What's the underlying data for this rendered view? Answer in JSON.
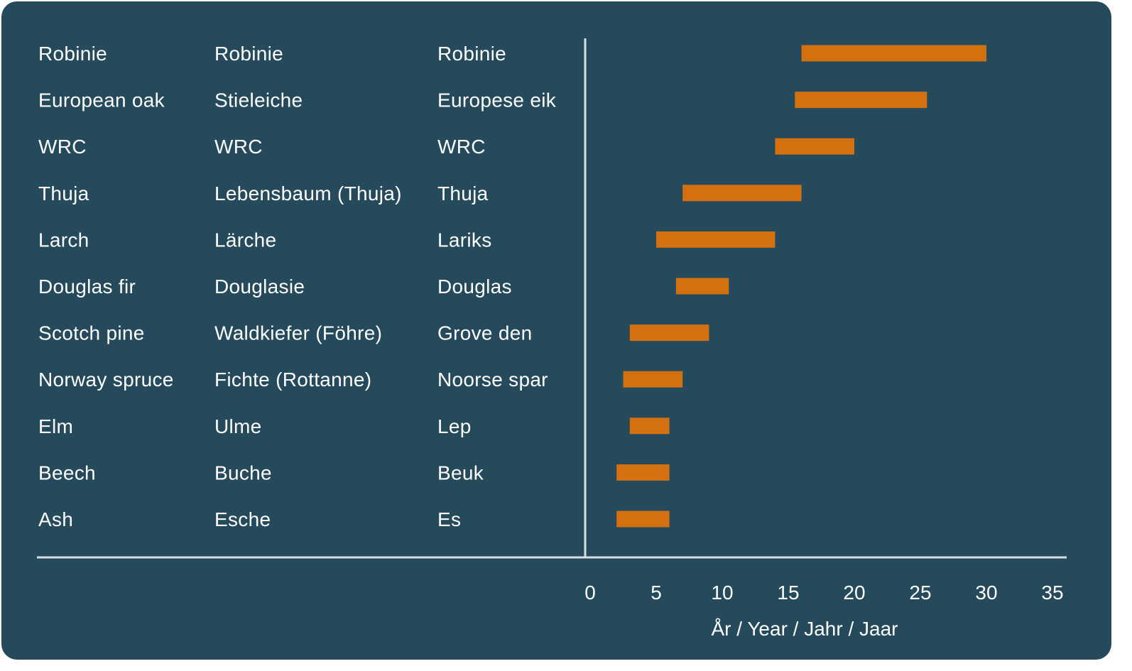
{
  "chart_data": {
    "type": "bar",
    "subtype": "floating-range-horizontal",
    "bar_color": "#d4700f",
    "background_color": "#254a5b",
    "text_color": "#ffffff",
    "axis_color": "#d8dde0",
    "xlabel": "År / Year / Jahr / Jaar",
    "xlim": [
      0,
      35
    ],
    "xticks": [
      0,
      5,
      10,
      15,
      20,
      25,
      30,
      35
    ],
    "grid": false,
    "legend": "none",
    "categories": [
      {
        "en": "Robinie",
        "de": "Robinie",
        "nl": "Robinie"
      },
      {
        "en": "European oak",
        "de": "Stieleiche",
        "nl": "Europese eik"
      },
      {
        "en": "WRC",
        "de": "WRC",
        "nl": "WRC"
      },
      {
        "en": "Thuja",
        "de": "Lebensbaum (Thuja)",
        "nl": "Thuja"
      },
      {
        "en": "Larch",
        "de": "Lärche",
        "nl": "Lariks"
      },
      {
        "en": "Douglas fir",
        "de": "Douglasie",
        "nl": "Douglas"
      },
      {
        "en": "Scotch pine",
        "de": "Waldkiefer (Föhre)",
        "nl": "Grove den"
      },
      {
        "en": "Norway spruce",
        "de": "Fichte (Rottanne)",
        "nl": "Noorse spar"
      },
      {
        "en": "Elm",
        "de": "Ulme",
        "nl": "Lep"
      },
      {
        "en": "Beech",
        "de": "Buche",
        "nl": "Beuk"
      },
      {
        "en": "Ash",
        "de": "Esche",
        "nl": "Es"
      }
    ],
    "ranges": [
      [
        16,
        30
      ],
      [
        15.5,
        25.5
      ],
      [
        14,
        20
      ],
      [
        7,
        16
      ],
      [
        5,
        14
      ],
      [
        6.5,
        10.5
      ],
      [
        3,
        9
      ],
      [
        2.5,
        7
      ],
      [
        3,
        6
      ],
      [
        2,
        6
      ],
      [
        2,
        6
      ]
    ]
  }
}
